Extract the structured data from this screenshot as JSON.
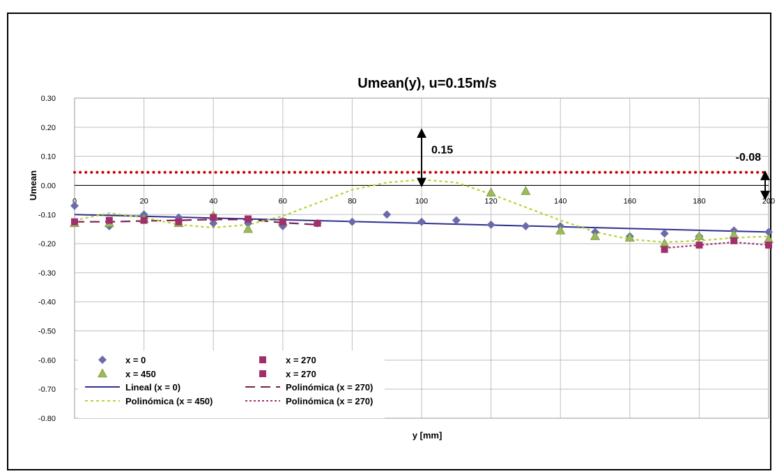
{
  "chart_data": {
    "type": "scatter",
    "title": "Umean(y), u=0.15m/s",
    "xlabel": "y [mm]",
    "ylabel": "Umean",
    "xlim": [
      0,
      200
    ],
    "ylim": [
      -0.8,
      0.3
    ],
    "x_ticks": [
      0,
      20,
      40,
      60,
      80,
      100,
      120,
      140,
      160,
      180,
      200
    ],
    "y_ticks": [
      0.3,
      0.2,
      0.1,
      0.0,
      -0.1,
      -0.2,
      -0.3,
      -0.4,
      -0.5,
      -0.6,
      -0.7,
      -0.8
    ],
    "y_tick_labels": [
      "0.30",
      "0.20",
      "0.10",
      "0.00",
      "-0.10",
      "-0.20",
      "-0.30",
      "-0.40",
      "-0.50",
      "-0.60",
      "-0.70",
      "-0.80"
    ],
    "grid": true,
    "series": [
      {
        "name": "x = 0",
        "marker": "diamond",
        "color": "#6b6bab",
        "x": [
          0,
          10,
          20,
          30,
          40,
          50,
          60,
          70,
          80,
          90,
          100,
          110,
          120,
          130,
          140,
          150,
          160,
          170,
          180,
          190,
          200
        ],
        "y": [
          -0.07,
          -0.14,
          -0.1,
          -0.11,
          -0.13,
          -0.13,
          -0.14,
          -0.13,
          -0.125,
          -0.1,
          -0.125,
          -0.12,
          -0.135,
          -0.14,
          -0.14,
          -0.16,
          -0.175,
          -0.165,
          -0.175,
          -0.155,
          -0.16
        ]
      },
      {
        "name": "x = 450",
        "marker": "triangle",
        "color": "#9bbb59",
        "x": [
          0,
          10,
          20,
          30,
          40,
          50,
          60,
          120,
          130,
          140,
          150,
          160,
          170,
          180,
          190,
          200
        ],
        "y": [
          -0.13,
          -0.13,
          -0.115,
          -0.13,
          -0.105,
          -0.15,
          -0.125,
          -0.025,
          -0.02,
          -0.155,
          -0.175,
          -0.18,
          -0.2,
          -0.175,
          -0.17,
          -0.185
        ]
      },
      {
        "name": "x = 270",
        "marker": "square",
        "color": "#a0306b",
        "x": [
          0,
          10,
          20,
          30,
          40,
          50,
          60,
          70
        ],
        "y": [
          -0.125,
          -0.12,
          -0.12,
          -0.125,
          -0.11,
          -0.115,
          -0.125,
          -0.13
        ]
      },
      {
        "name": "x = 270",
        "marker": "square",
        "color": "#a0306b",
        "x": [
          170,
          180,
          190,
          200
        ],
        "y": [
          -0.22,
          -0.205,
          -0.19,
          -0.205
        ]
      }
    ],
    "trendlines": [
      {
        "name": "Lineal (x = 0)",
        "style": "solid",
        "color": "#2e2e8f",
        "x": [
          0,
          200
        ],
        "y": [
          -0.1,
          -0.16
        ]
      },
      {
        "name": "Polinómica (x = 270)",
        "style": "dash",
        "color": "#7a1f4d",
        "x": [
          0,
          10,
          20,
          30,
          40,
          50,
          60,
          70
        ],
        "y": [
          -0.125,
          -0.125,
          -0.122,
          -0.12,
          -0.117,
          -0.117,
          -0.128,
          -0.135
        ]
      },
      {
        "name": "Polinómica (x = 450)",
        "style": "dot",
        "color": "#b5d334",
        "x": [
          0,
          10,
          20,
          30,
          40,
          50,
          60,
          70,
          80,
          90,
          100,
          110,
          120,
          130,
          140,
          150,
          160,
          170,
          180,
          190,
          200
        ],
        "y": [
          -0.12,
          -0.095,
          -0.11,
          -0.135,
          -0.145,
          -0.135,
          -0.105,
          -0.06,
          -0.015,
          0.01,
          0.02,
          0.01,
          -0.03,
          -0.075,
          -0.12,
          -0.16,
          -0.185,
          -0.195,
          -0.19,
          -0.18,
          -0.175
        ]
      },
      {
        "name": "Polinómica (x = 270)",
        "style": "shortdot",
        "color": "#a0306b",
        "x": [
          170,
          180,
          190,
          200
        ],
        "y": [
          -0.215,
          -0.205,
          -0.195,
          -0.205
        ]
      }
    ],
    "reference_line": {
      "y": 0.045,
      "color": "#cc0000",
      "style": "dotted"
    },
    "annotations": [
      {
        "text": "0.15",
        "x": 100,
        "from_y": 0.0,
        "to_y": 0.19
      },
      {
        "text": "-0.08",
        "x": 199,
        "from_y": 0.045,
        "to_y": -0.045
      }
    ],
    "legend": {
      "placement": "bottom-left",
      "entries": [
        {
          "label": "x = 0",
          "kind": "diamond",
          "color": "#6b6bab"
        },
        {
          "label": "x = 270",
          "kind": "square",
          "color": "#a0306b"
        },
        {
          "label": "x = 450",
          "kind": "triangle",
          "color": "#9bbb59"
        },
        {
          "label": "x = 270",
          "kind": "square",
          "color": "#a0306b"
        },
        {
          "label": "Lineal (x = 0)",
          "kind": "line-solid",
          "color": "#2e2e8f"
        },
        {
          "label": "Polinómica (x = 270)",
          "kind": "line-dash",
          "color": "#7a1f4d"
        },
        {
          "label": "Polinómica (x = 450)",
          "kind": "line-dot",
          "color": "#b5d334"
        },
        {
          "label": "Polinómica (x = 270)",
          "kind": "line-shortdot",
          "color": "#a0306b"
        }
      ]
    }
  }
}
